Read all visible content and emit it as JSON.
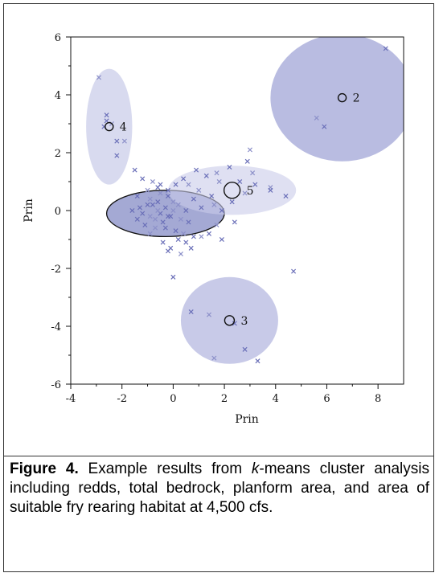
{
  "figure": {
    "label": "Figure 4.",
    "caption_pre": " Example results from ",
    "caption_em": "k",
    "caption_post": "-means cluster analysis including redds, total bedrock, planform area, and area of suitable fry rearing habitat at 4,500 cfs."
  },
  "chart_data": {
    "type": "scatter",
    "title": "",
    "xlabel": "Prin",
    "ylabel": "Prin",
    "xlim": [
      -4,
      9
    ],
    "ylim": [
      -6,
      6
    ],
    "x_ticks": [
      "-4",
      "-2",
      "0",
      "2",
      "4",
      "6",
      "8"
    ],
    "y_ticks": [
      "6",
      "4",
      "2",
      "0",
      "-2",
      "-4",
      "-6"
    ],
    "grid": false,
    "colors": {
      "marker": "#6a6fb8",
      "marker_light": "#8c90c9",
      "ellipse": "#9a9fd3"
    },
    "clusters": [
      {
        "id": "1",
        "label": "",
        "center": [
          -0.3,
          -0.1
        ],
        "rx": 2.3,
        "ry": 0.8,
        "fill": "#5a62b0",
        "opacity": 0.55,
        "outlined": true
      },
      {
        "id": "2",
        "label": "2",
        "center": [
          6.6,
          3.9
        ],
        "rx": 2.8,
        "ry": 2.2,
        "fill": "#8a8fcd",
        "opacity": 0.6,
        "outlined": false
      },
      {
        "id": "3",
        "label": "3",
        "center": [
          2.2,
          -3.8
        ],
        "rx": 1.9,
        "ry": 1.5,
        "fill": "#9a9fd6",
        "opacity": 0.55,
        "outlined": false
      },
      {
        "id": "4",
        "label": "4",
        "center": [
          -2.5,
          2.9
        ],
        "rx": 0.9,
        "ry": 2.0,
        "fill": "#b2b6e0",
        "opacity": 0.5,
        "outlined": false
      },
      {
        "id": "5",
        "label": "5",
        "center": [
          2.3,
          0.7
        ],
        "rx": 2.5,
        "ry": 0.85,
        "fill": "#c9cbe9",
        "opacity": 0.6,
        "outlined": false
      }
    ],
    "points": [
      [
        -2.9,
        4.6
      ],
      [
        -2.6,
        3.3
      ],
      [
        -2.6,
        3.1
      ],
      [
        -2.4,
        3.0
      ],
      [
        -2.7,
        2.9
      ],
      [
        -2.2,
        2.4
      ],
      [
        -1.9,
        2.4
      ],
      [
        -2.2,
        1.9
      ],
      [
        8.3,
        5.6
      ],
      [
        5.6,
        3.2
      ],
      [
        5.9,
        2.9
      ],
      [
        0.7,
        -3.5
      ],
      [
        1.4,
        -3.6
      ],
      [
        2.4,
        -3.9
      ],
      [
        2.8,
        -4.8
      ],
      [
        1.6,
        -5.1
      ],
      [
        3.3,
        -5.2
      ],
      [
        4.7,
        -2.1
      ],
      [
        3.0,
        2.1
      ],
      [
        2.9,
        1.7
      ],
      [
        2.2,
        1.5
      ],
      [
        1.7,
        1.3
      ],
      [
        0.9,
        1.4
      ],
      [
        1.3,
        1.2
      ],
      [
        1.8,
        1.0
      ],
      [
        2.6,
        1.0
      ],
      [
        3.2,
        0.9
      ],
      [
        3.8,
        0.8
      ],
      [
        4.4,
        0.5
      ],
      [
        3.8,
        0.7
      ],
      [
        2.8,
        0.6
      ],
      [
        2.3,
        0.3
      ],
      [
        1.5,
        0.5
      ],
      [
        1.0,
        0.7
      ],
      [
        0.8,
        0.4
      ],
      [
        1.1,
        0.1
      ],
      [
        1.6,
        0.2
      ],
      [
        1.9,
        0.0
      ],
      [
        2.4,
        -0.4
      ],
      [
        1.7,
        -0.5
      ],
      [
        1.4,
        -0.8
      ],
      [
        1.9,
        -1.0
      ],
      [
        0.6,
        0.9
      ],
      [
        0.4,
        1.1
      ],
      [
        0.1,
        0.9
      ],
      [
        3.1,
        1.3
      ],
      [
        -1.5,
        1.4
      ],
      [
        -1.2,
        1.1
      ],
      [
        -0.8,
        1.0
      ],
      [
        -0.5,
        0.9
      ],
      [
        -1.4,
        0.5
      ],
      [
        -0.9,
        0.4
      ],
      [
        -0.6,
        0.3
      ],
      [
        -0.2,
        0.5
      ],
      [
        0.2,
        0.2
      ],
      [
        0.5,
        0.0
      ],
      [
        -1.2,
        -0.1
      ],
      [
        -0.9,
        -0.2
      ],
      [
        -0.5,
        -0.1
      ],
      [
        -0.1,
        -0.2
      ],
      [
        0.3,
        -0.3
      ],
      [
        0.6,
        -0.4
      ],
      [
        -1.1,
        -0.5
      ],
      [
        -0.7,
        -0.6
      ],
      [
        -0.3,
        -0.6
      ],
      [
        0.1,
        -0.7
      ],
      [
        0.4,
        -0.8
      ],
      [
        -0.4,
        -1.1
      ],
      [
        -0.1,
        -1.3
      ],
      [
        0.3,
        -1.5
      ],
      [
        0.7,
        -1.3
      ],
      [
        -0.2,
        -1.4
      ],
      [
        -0.6,
        0.0
      ],
      [
        -0.8,
        0.2
      ],
      [
        -0.3,
        0.1
      ],
      [
        0.0,
        0.0
      ],
      [
        -1.3,
        0.1
      ],
      [
        -1.0,
        0.2
      ],
      [
        -0.7,
        -0.3
      ],
      [
        -0.4,
        -0.4
      ],
      [
        -0.2,
        -0.2
      ],
      [
        0.0,
        0.3
      ],
      [
        -1.6,
        0.0
      ],
      [
        -1.4,
        -0.3
      ],
      [
        -0.5,
        0.6
      ],
      [
        -0.2,
        0.7
      ],
      [
        0.8,
        -0.9
      ],
      [
        1.1,
        -0.9
      ],
      [
        0.0,
        -2.3
      ],
      [
        0.5,
        -1.1
      ],
      [
        -0.9,
        -0.8
      ],
      [
        -0.6,
        0.8
      ],
      [
        0.2,
        -1.0
      ],
      [
        -1.0,
        0.7
      ]
    ]
  }
}
